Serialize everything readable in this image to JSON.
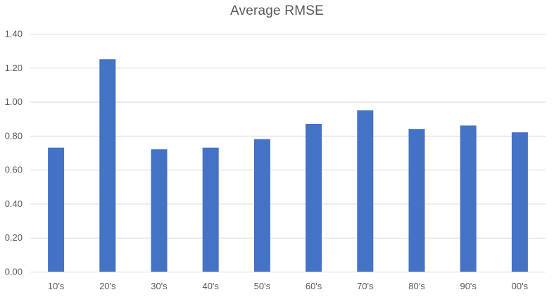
{
  "chart_data": {
    "type": "bar",
    "title": "Average RMSE",
    "xlabel": "",
    "ylabel": "",
    "categories": [
      "10's",
      "20's",
      "30's",
      "40's",
      "50's",
      "60's",
      "70's",
      "80's",
      "90's",
      "00's"
    ],
    "values": [
      0.73,
      1.25,
      0.72,
      0.73,
      0.78,
      0.87,
      0.95,
      0.84,
      0.86,
      0.82
    ],
    "ylim": [
      0,
      1.4
    ],
    "yticks": [
      "0.00",
      "0.20",
      "0.40",
      "0.60",
      "0.80",
      "1.00",
      "1.20",
      "1.40"
    ],
    "grid": true,
    "legend": "none",
    "bar_color": "#4472c4"
  }
}
